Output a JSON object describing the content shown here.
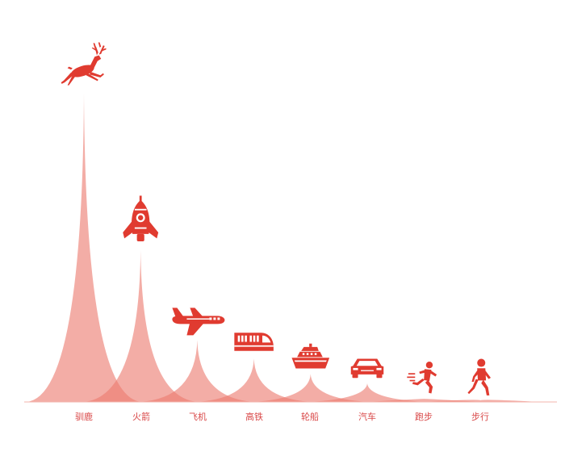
{
  "chart_data": {
    "type": "pictorial-peak",
    "title": "",
    "xlabel": "",
    "ylabel": "",
    "ylim": [
      0,
      100
    ],
    "categories": [
      "驯鹿",
      "火箭",
      "飞机",
      "高铁",
      "轮船",
      "汽车",
      "跑步",
      "步行"
    ],
    "icons": [
      "reindeer-icon",
      "rocket-icon",
      "airplane-icon",
      "train-icon",
      "ship-icon",
      "car-icon",
      "runner-icon",
      "walker-icon"
    ],
    "values": [
      100,
      49,
      20,
      14,
      9,
      6,
      1,
      0
    ]
  },
  "colors": {
    "accent": "#e03b30",
    "peak": "#ec7b70"
  }
}
